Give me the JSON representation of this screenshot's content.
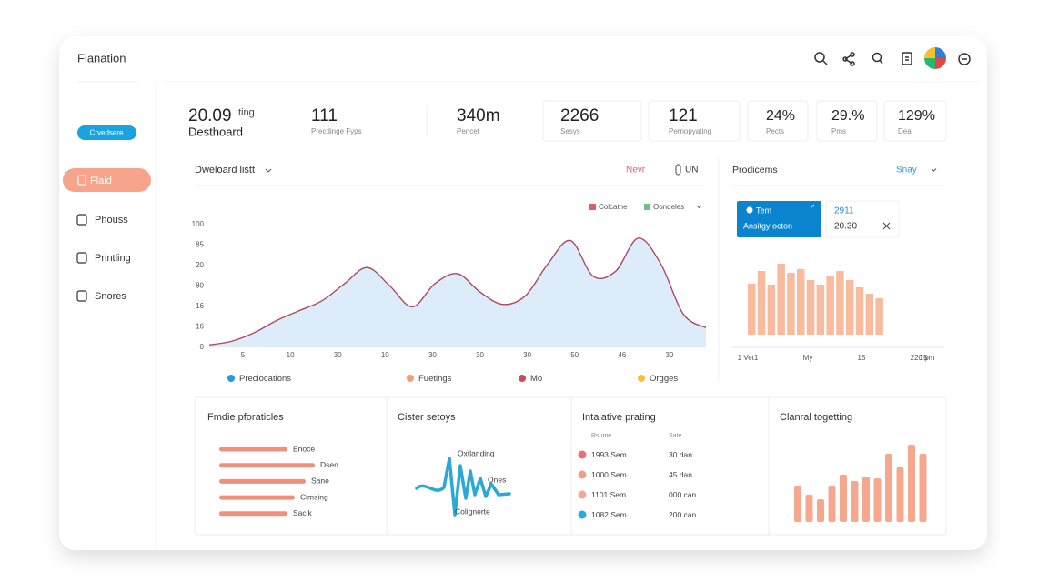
{
  "header": {
    "title": "Flanation"
  },
  "sidebar": {
    "badge": "Crvedsere",
    "items": [
      "Flaid",
      "Phouss",
      "Printling",
      "Snores"
    ]
  },
  "stats": [
    {
      "value": "20.09",
      "suffix": "ting",
      "label": "Desthoard"
    },
    {
      "value": "111",
      "label": "Precdinge Fyps"
    },
    {
      "value": "340m",
      "label": "Pencet"
    },
    {
      "value": "2266",
      "label": "Sesys"
    },
    {
      "value": "121",
      "label": "Pernopyating"
    },
    {
      "value": "24%",
      "label": "Pects"
    },
    {
      "value": "29.%",
      "label": "Pms"
    },
    {
      "value": "129%",
      "label": "Deal"
    }
  ],
  "main_chart": {
    "type": "area",
    "title": "Dweloard listt",
    "action": "Nevr",
    "toggle": "UN",
    "legend_top": [
      {
        "name": "Colcatne",
        "color": "#e05c6a"
      },
      {
        "name": "Oondeles",
        "color": "#6cc08a"
      }
    ],
    "y_labels": [
      "100",
      "85",
      "20",
      "80",
      "16",
      "16",
      "0"
    ],
    "x_labels": [
      "5",
      "10",
      "30",
      "10",
      "30",
      "30",
      "30",
      "50",
      "46",
      "30"
    ],
    "ylim": [
      0,
      100
    ],
    "values": [
      2,
      5,
      12,
      22,
      30,
      38,
      52,
      65,
      50,
      33,
      52,
      60,
      45,
      35,
      42,
      68,
      87,
      58,
      62,
      89,
      68,
      27,
      16
    ],
    "line_color": "#b0485e",
    "fill_color": "#dcecfa",
    "legend": [
      {
        "name": "Preclocations",
        "color": "#1e9fd8"
      },
      {
        "name": "Fuetings",
        "color": "#f0a080"
      },
      {
        "name": "Mo",
        "color": "#d9435a"
      },
      {
        "name": "Orgges",
        "color": "#f2c230"
      }
    ]
  },
  "side_chart": {
    "type": "bar",
    "title": "Prodicems",
    "filter": "Snay",
    "popup": {
      "title": "Tem",
      "subtitle": "Ansitgy octon",
      "value": "2911",
      "time": "20.30"
    },
    "ylim": [
      0,
      100
    ],
    "values": [
      56,
      70,
      55,
      78,
      68,
      72,
      60,
      55,
      65,
      70,
      60,
      52,
      45,
      40
    ],
    "color": "#f8bb9e",
    "x_labels": [
      "1 Vet1",
      "My",
      "15",
      "15",
      "220 pm"
    ]
  },
  "panels": [
    {
      "title": "Fmdie pforaticles",
      "color": "#f0907a",
      "items": [
        {
          "label": "Enoce",
          "value": 75
        },
        {
          "label": "Dsen",
          "value": 105
        },
        {
          "label": "Sane",
          "value": 95
        },
        {
          "label": "Cimsing",
          "value": 83
        },
        {
          "label": "Sacik",
          "value": 75
        }
      ]
    },
    {
      "title": "Cister setoys",
      "labels": [
        "Oxtlanding",
        "Ones",
        "Colignerte"
      ]
    },
    {
      "title": "Intalative prating",
      "columns": [
        "Rsume",
        "Sate"
      ],
      "rows": [
        {
          "color": "#e57373",
          "name": "1993 Sem",
          "value": "30 dan"
        },
        {
          "color": "#f0a080",
          "name": "1000 Sem",
          "value": "45 dan"
        },
        {
          "color": "#f3a890",
          "name": "1101 Sem",
          "value": "000 can"
        },
        {
          "color": "#2ea8d8",
          "name": "1082 Sem",
          "value": "200 can"
        }
      ]
    },
    {
      "title": "Clanral togetting",
      "color": "#f6a88e",
      "ylim": [
        0,
        100
      ],
      "values": [
        40,
        30,
        25,
        40,
        52,
        45,
        50,
        48,
        75,
        60,
        85,
        75
      ]
    }
  ]
}
